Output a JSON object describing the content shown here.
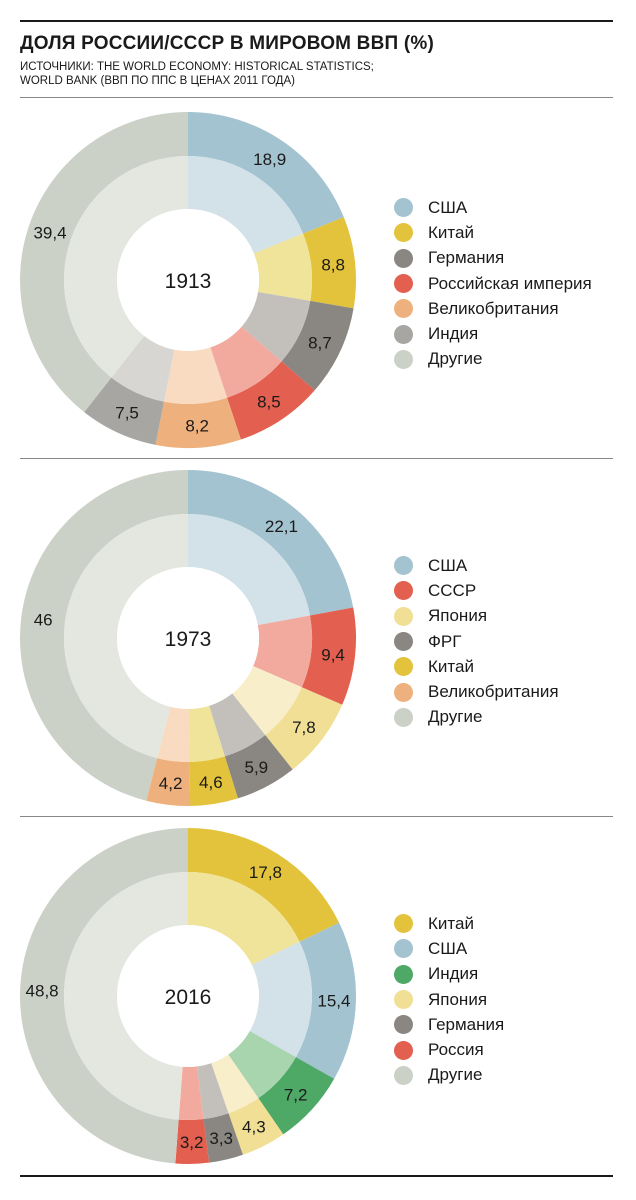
{
  "header": {
    "title": "ДОЛЯ РОССИИ/СССР В МИРОВОМ ВВП (%)",
    "subtitle_line1": "ИСТОЧНИКИ: THE WORLD ECONOMY: HISTORICAL STATISTICS;",
    "subtitle_line2": "WORLD BANK (ВВП ПО ППС В ЦЕНАХ 2011 ГОДА)"
  },
  "chart_data": [
    {
      "type": "pie",
      "subtype": "double-ring donut",
      "center_label": "1913",
      "segments": [
        {
          "name": "США",
          "value": 18.9,
          "label": "18,9",
          "color": "#a3c3d0",
          "light": "#d2e2e8"
        },
        {
          "name": "Китай",
          "value": 8.8,
          "label": "8,8",
          "color": "#e3c33c",
          "light": "#f0e39a"
        },
        {
          "name": "Германия",
          "value": 8.7,
          "label": "8,7",
          "color": "#8a8682",
          "light": "#c3c0bc"
        },
        {
          "name": "Российская империя",
          "value": 8.5,
          "label": "8,5",
          "color": "#e35f4f",
          "light": "#f2aa9f"
        },
        {
          "name": "Великобритания",
          "value": 8.2,
          "label": "8,2",
          "color": "#eeb17e",
          "light": "#f8dbc0"
        },
        {
          "name": "Индия",
          "value": 7.5,
          "label": "7,5",
          "color": "#a7a6a2",
          "light": "#d7d6d3"
        },
        {
          "name": "Другие",
          "value": 39.4,
          "label": "39,4",
          "color": "#ccd1c8",
          "light": "#e4e7e0"
        }
      ]
    },
    {
      "type": "pie",
      "subtype": "double-ring donut",
      "center_label": "1973",
      "segments": [
        {
          "name": "США",
          "value": 22.1,
          "label": "22,1",
          "color": "#a3c3d0",
          "light": "#d2e2e8"
        },
        {
          "name": "СССР",
          "value": 9.4,
          "label": "9,4",
          "color": "#e35f4f",
          "light": "#f2aa9f"
        },
        {
          "name": "Япония",
          "value": 7.8,
          "label": "7,8",
          "color": "#f0df94",
          "light": "#f8efca"
        },
        {
          "name": "ФРГ",
          "value": 5.9,
          "label": "5,9",
          "color": "#8a8682",
          "light": "#c3c0bc"
        },
        {
          "name": "Китай",
          "value": 4.6,
          "label": "4,6",
          "color": "#e3c33c",
          "light": "#f0e39a"
        },
        {
          "name": "Великобритания",
          "value": 4.2,
          "label": "4,2",
          "color": "#eeb17e",
          "light": "#f8dbc0"
        },
        {
          "name": "Другие",
          "value": 46,
          "label": "46",
          "color": "#ccd1c8",
          "light": "#e4e7e0"
        }
      ]
    },
    {
      "type": "pie",
      "subtype": "double-ring donut",
      "center_label": "2016",
      "segments": [
        {
          "name": "Китай",
          "value": 17.8,
          "label": "17,8",
          "color": "#e3c33c",
          "light": "#f0e39a"
        },
        {
          "name": "США",
          "value": 15.4,
          "label": "15,4",
          "color": "#a3c3d0",
          "light": "#d2e2e8"
        },
        {
          "name": "Индия",
          "value": 7.2,
          "label": "7,2",
          "color": "#4ea866",
          "light": "#a8d4ae"
        },
        {
          "name": "Япония",
          "value": 4.3,
          "label": "4,3",
          "color": "#f0df94",
          "light": "#f8efca"
        },
        {
          "name": "Германия",
          "value": 3.3,
          "label": "3,3",
          "color": "#8a8682",
          "light": "#c3c0bc"
        },
        {
          "name": "Россия",
          "value": 3.2,
          "label": "3,2",
          "color": "#e35f4f",
          "light": "#f2aa9f"
        },
        {
          "name": "Другие",
          "value": 48.8,
          "label": "48,8",
          "color": "#ccd1c8",
          "light": "#e4e7e0"
        }
      ]
    }
  ]
}
